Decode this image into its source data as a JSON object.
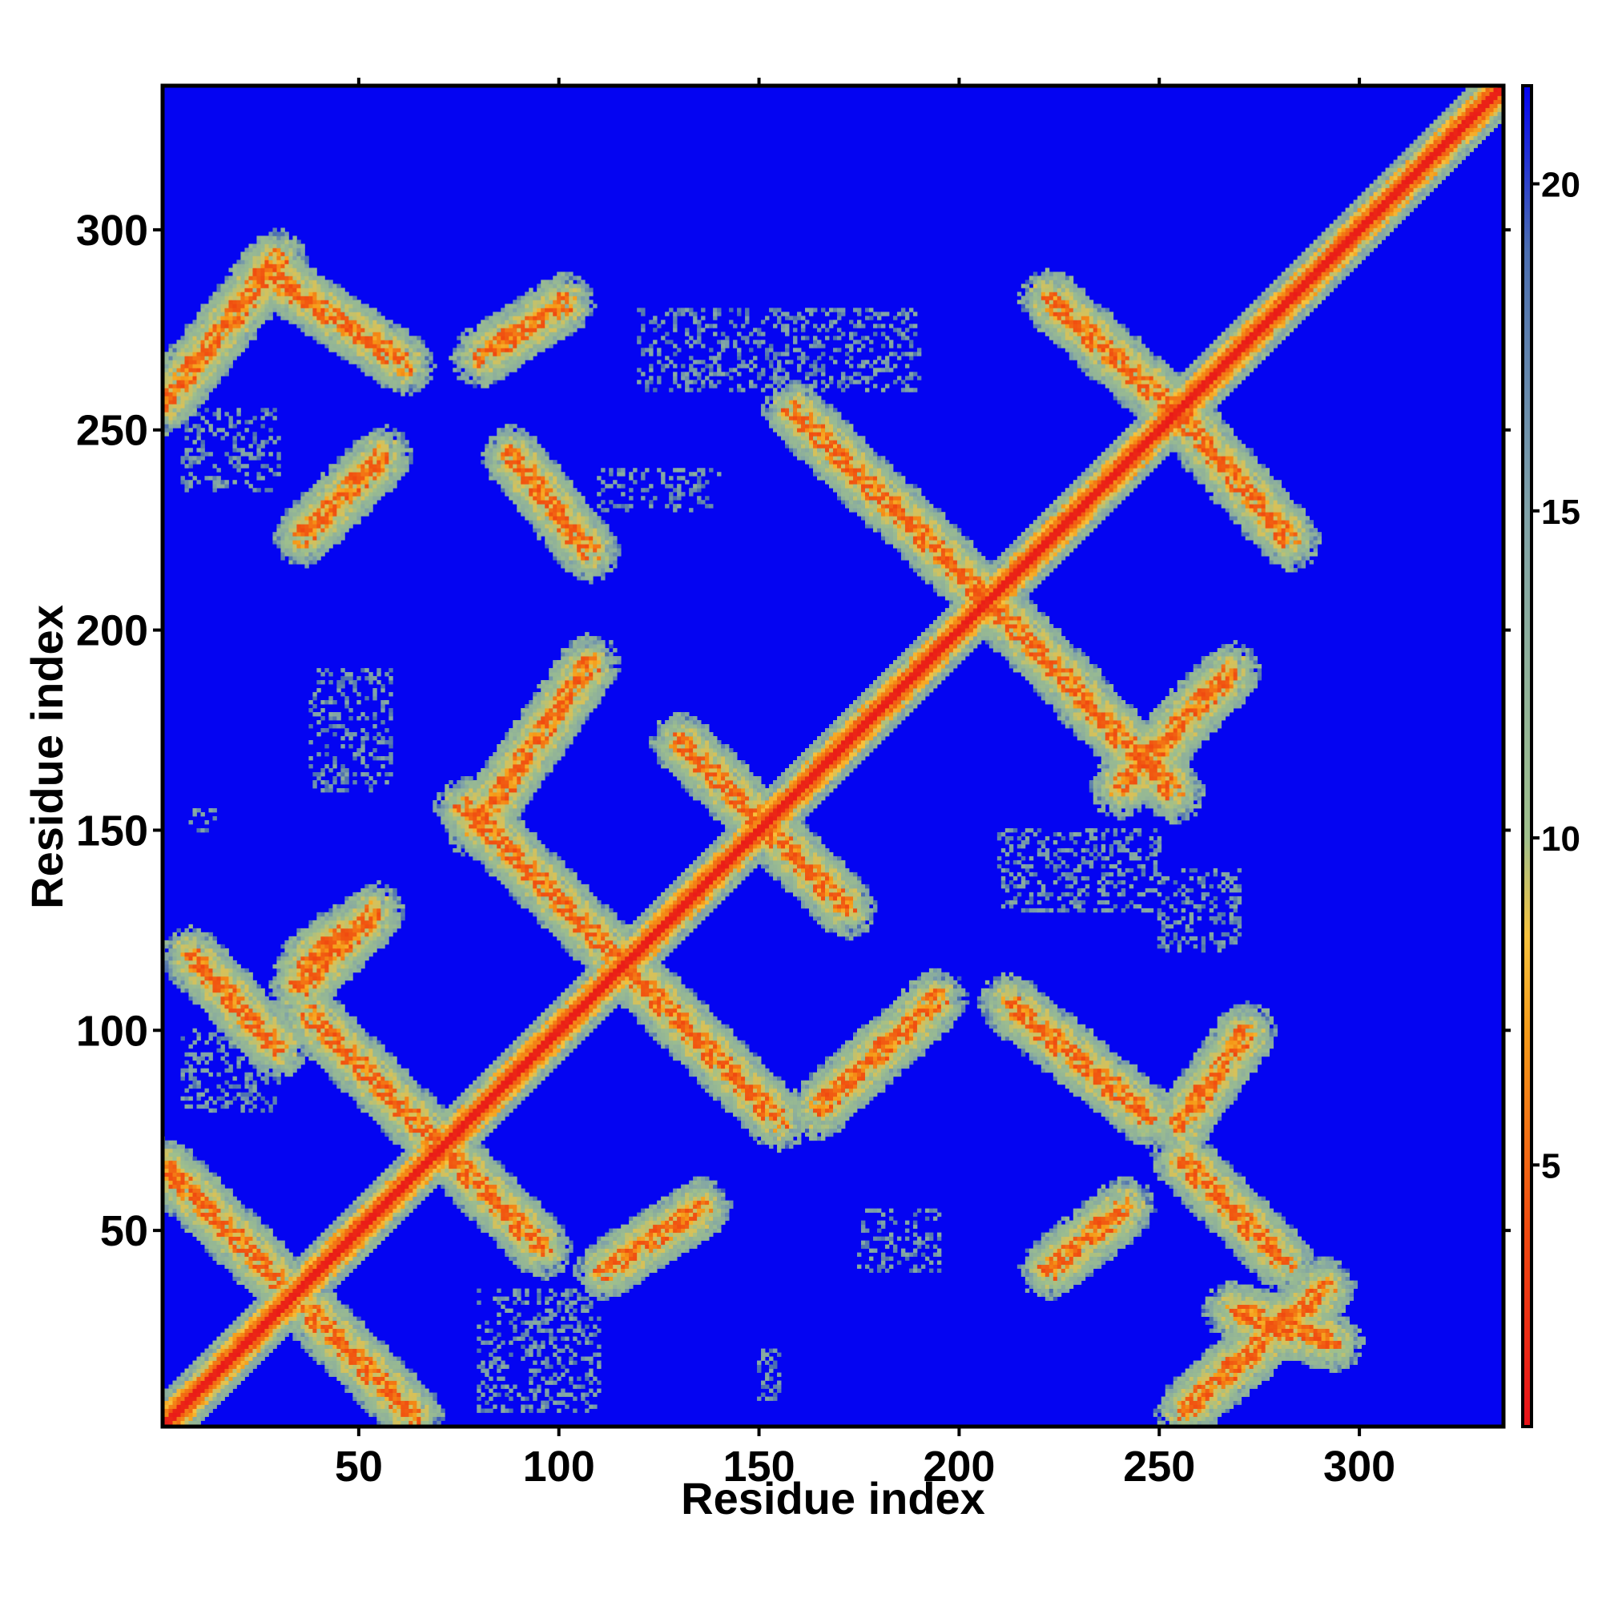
{
  "chart_data": {
    "type": "heatmap",
    "title": "",
    "xlabel": "Residue index",
    "ylabel": "Residue index",
    "xlim": [
      1,
      336
    ],
    "ylim": [
      1,
      336
    ],
    "x_ticks": [
      50,
      100,
      150,
      200,
      250,
      300
    ],
    "y_ticks": [
      50,
      100,
      150,
      200,
      250,
      300
    ],
    "colorbar": {
      "range": [
        1,
        21.5
      ],
      "ticks": [
        5,
        10,
        15,
        20
      ],
      "stops": [
        {
          "value": 1,
          "color": "#e8121a"
        },
        {
          "value": 4,
          "color": "#f04a10"
        },
        {
          "value": 7,
          "color": "#f59a18"
        },
        {
          "value": 8.5,
          "color": "#f7c23c"
        },
        {
          "value": 10,
          "color": "#9fc08c"
        },
        {
          "value": 15,
          "color": "#7fa2a8"
        },
        {
          "value": 19,
          "color": "#4a6db0"
        },
        {
          "value": 21.5,
          "color": "#0404f2"
        }
      ]
    },
    "background_value": 21.5,
    "background_color": "#0404f2",
    "diagonal": {
      "core_value": 1.5,
      "band_value": 4.5,
      "halo_value": 10.5
    },
    "contact_bands": [
      {
        "kind": "anti",
        "from": [
          1,
          66
        ],
        "to": [
          30,
          37
        ]
      },
      {
        "kind": "anti",
        "from": [
          37,
          30
        ],
        "to": [
          64,
          3
        ]
      },
      {
        "kind": "anti",
        "from": [
          37,
          104
        ],
        "to": [
          70,
          71
        ]
      },
      {
        "kind": "anti",
        "from": [
          71,
          70
        ],
        "to": [
          96,
          45
        ]
      },
      {
        "kind": "anti",
        "from": [
          76,
          156
        ],
        "to": [
          114,
          118
        ]
      },
      {
        "kind": "anti",
        "from": [
          118,
          114
        ],
        "to": [
          155,
          77
        ]
      },
      {
        "kind": "anti",
        "from": [
          130,
          172
        ],
        "to": [
          150,
          152
        ]
      },
      {
        "kind": "anti",
        "from": [
          152,
          150
        ],
        "to": [
          172,
          130
        ]
      },
      {
        "kind": "anti",
        "from": [
          158,
          255
        ],
        "to": [
          209,
          206
        ]
      },
      {
        "kind": "anti",
        "from": [
          206,
          209
        ],
        "to": [
          254,
          159
        ]
      },
      {
        "kind": "anti",
        "from": [
          222,
          283
        ],
        "to": [
          256,
          253
        ]
      },
      {
        "kind": "anti",
        "from": [
          253,
          256
        ],
        "to": [
          283,
          222
        ]
      },
      {
        "kind": "anti",
        "from": [
          8,
          119
        ],
        "to": [
          30,
          95
        ]
      },
      {
        "kind": "anti",
        "from": [
          26,
          290
        ],
        "to": [
          62,
          266
        ]
      },
      {
        "kind": "anti",
        "from": [
          88,
          244
        ],
        "to": [
          108,
          219
        ]
      },
      {
        "kind": "anti",
        "from": [
          212,
          107
        ],
        "to": [
          248,
          78
        ]
      },
      {
        "kind": "anti",
        "from": [
          255,
          68
        ],
        "to": [
          282,
          42
        ]
      },
      {
        "kind": "para",
        "from": [
          1,
          256
        ],
        "to": [
          30,
          293
        ]
      },
      {
        "kind": "para",
        "from": [
          36,
          223
        ],
        "to": [
          56,
          244
        ]
      },
      {
        "kind": "para",
        "from": [
          80,
          268
        ],
        "to": [
          102,
          282
        ]
      },
      {
        "kind": "para",
        "from": [
          35,
          110
        ],
        "to": [
          54,
          130
        ]
      },
      {
        "kind": "para",
        "from": [
          36,
          116
        ],
        "to": [
          46,
          124
        ]
      },
      {
        "kind": "para",
        "from": [
          79,
          150
        ],
        "to": [
          108,
          192
        ]
      },
      {
        "kind": "para",
        "from": [
          111,
          40
        ],
        "to": [
          136,
          56
        ]
      },
      {
        "kind": "para",
        "from": [
          164,
          80
        ],
        "to": [
          195,
          108
        ]
      },
      {
        "kind": "para",
        "from": [
          222,
          40
        ],
        "to": [
          242,
          56
        ]
      },
      {
        "kind": "para",
        "from": [
          255,
          76
        ],
        "to": [
          272,
          100
        ]
      },
      {
        "kind": "para",
        "from": [
          256,
          5
        ],
        "to": [
          292,
          36
        ]
      },
      {
        "kind": "para",
        "from": [
          268,
          30
        ],
        "to": [
          294,
          22
        ]
      },
      {
        "kind": "para",
        "from": [
          240,
          160
        ],
        "to": [
          268,
          190
        ]
      }
    ],
    "sparse_patches": [
      {
        "from": [
          120,
          260
        ],
        "to": [
          190,
          280
        ]
      },
      {
        "from": [
          110,
          230
        ],
        "to": [
          140,
          240
        ]
      },
      {
        "from": [
          6,
          235
        ],
        "to": [
          30,
          255
        ]
      },
      {
        "from": [
          38,
          160
        ],
        "to": [
          58,
          190
        ]
      },
      {
        "from": [
          210,
          130
        ],
        "to": [
          250,
          150
        ]
      },
      {
        "from": [
          175,
          40
        ],
        "to": [
          195,
          55
        ]
      },
      {
        "from": [
          80,
          5
        ],
        "to": [
          110,
          35
        ]
      },
      {
        "from": [
          150,
          8
        ],
        "to": [
          155,
          20
        ]
      },
      {
        "from": [
          250,
          120
        ],
        "to": [
          270,
          140
        ]
      },
      {
        "from": [
          8,
          150
        ],
        "to": [
          14,
          155
        ]
      },
      {
        "from": [
          6,
          80
        ],
        "to": [
          30,
          100
        ]
      }
    ]
  }
}
